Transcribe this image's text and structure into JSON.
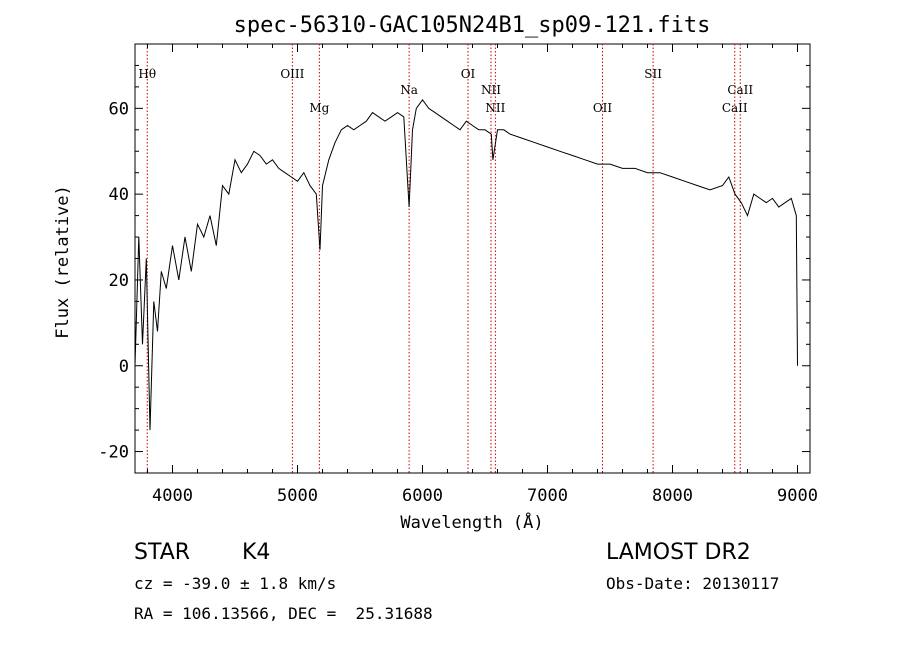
{
  "chart_data": {
    "type": "line",
    "title": "spec-56310-GAC105N24B1_sp09-121.fits",
    "xlabel": "Wavelength (Å)",
    "ylabel": "Flux (relative)",
    "xlim": [
      3700,
      9100
    ],
    "ylim": [
      -25,
      75
    ],
    "xticks": [
      "4000",
      "5000",
      "6000",
      "7000",
      "8000",
      "9000"
    ],
    "xtick_values": [
      4000,
      5000,
      6000,
      7000,
      8000,
      9000
    ],
    "yticks": [
      "-20",
      "0",
      "20",
      "40",
      "60"
    ],
    "ytick_values": [
      -20,
      0,
      20,
      40,
      60
    ],
    "line_color": "#000000",
    "marker_color": "#cc0000",
    "series": [
      {
        "x": [
          3700,
          3730,
          3760,
          3790,
          3820,
          3850,
          3880,
          3910,
          3950,
          4000,
          4050,
          4100,
          4150,
          4200,
          4250,
          4300,
          4350,
          4400,
          4450,
          4500,
          4550,
          4600,
          4650,
          4700,
          4750,
          4800,
          4850,
          4900,
          4950,
          5000,
          5050,
          5100,
          5150,
          5180,
          5200,
          5250,
          5300,
          5350,
          5400,
          5450,
          5500,
          5550,
          5600,
          5650,
          5700,
          5750,
          5800,
          5850,
          5893,
          5920,
          5950,
          6000,
          6050,
          6100,
          6150,
          6200,
          6250,
          6300,
          6350,
          6400,
          6450,
          6500,
          6550,
          6563,
          6600,
          6650,
          6700,
          6800,
          6900,
          7000,
          7100,
          7200,
          7300,
          7400,
          7500,
          7600,
          7700,
          7800,
          7900,
          8000,
          8100,
          8200,
          8300,
          8400,
          8450,
          8500,
          8550,
          8600,
          8650,
          8700,
          8750,
          8800,
          8850,
          8900,
          8950,
          8990,
          9000
        ],
        "y": [
          0,
          30,
          5,
          25,
          -15,
          15,
          8,
          22,
          18,
          28,
          20,
          30,
          22,
          33,
          30,
          35,
          28,
          42,
          40,
          48,
          45,
          47,
          50,
          49,
          47,
          48,
          46,
          45,
          44,
          43,
          45,
          42,
          40,
          27,
          42,
          48,
          52,
          55,
          56,
          55,
          56,
          57,
          59,
          58,
          57,
          58,
          59,
          58,
          37,
          55,
          60,
          62,
          60,
          59,
          58,
          57,
          56,
          55,
          57,
          56,
          55,
          55,
          54,
          48,
          55,
          55,
          54,
          53,
          52,
          51,
          50,
          49,
          48,
          47,
          47,
          46,
          46,
          45,
          45,
          44,
          43,
          42,
          41,
          42,
          44,
          40,
          38,
          35,
          40,
          39,
          38,
          39,
          37,
          38,
          39,
          35,
          0
        ]
      }
    ],
    "lines": [
      {
        "label": "Hθ",
        "x": 3798,
        "row": 1
      },
      {
        "label": "OIII",
        "x": 4959,
        "row": 1
      },
      {
        "label": "Mg",
        "x": 5175,
        "row": 3
      },
      {
        "label": "Na",
        "x": 5893,
        "row": 2
      },
      {
        "label": "OI",
        "x": 6364,
        "row": 1
      },
      {
        "label": "NII",
        "x": 6548,
        "row": 2
      },
      {
        "label": "NII",
        "x": 6583,
        "row": 3
      },
      {
        "label": "OII",
        "x": 7440,
        "row": 3
      },
      {
        "label": "SII",
        "x": 7845,
        "row": 1
      },
      {
        "label": "CaII",
        "x": 8498,
        "row": 3
      },
      {
        "label": "CaII",
        "x": 8542,
        "row": 2
      }
    ]
  },
  "annotations": {
    "object_class": "STAR",
    "subclass": "K4",
    "survey": "LAMOST DR2",
    "redshift": "cz = -39.0 ± 1.8 km/s",
    "obs_date": "Obs-Date: 20130117",
    "coords": "RA = 106.13566, DEC =  25.31688"
  }
}
